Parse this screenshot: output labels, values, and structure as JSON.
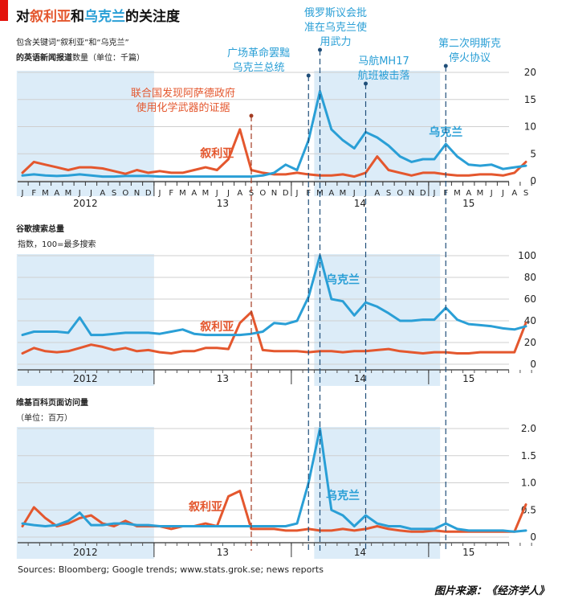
{
  "header": {
    "title_prefix": "对",
    "title_syria": "叙利亚",
    "title_middle": "和",
    "title_ukraine": "乌克兰",
    "title_suffix": "的关注度",
    "colors": {
      "syria": "#e4572e",
      "ukraine": "#2a9fd6",
      "brand": "#e3120b"
    }
  },
  "footer": {
    "sources": "Sources: Bloomberg; Google trends; www.stats.grok.se; news reports",
    "credit": "图片来源：《经济学人》"
  },
  "chart_data": [
    {
      "type": "line",
      "panel_title": "包含关键词“叙利亚”和“乌克兰”",
      "panel_subtitle_bold": "的英语新闻报道",
      "panel_subtitle_rest": "数量（单位：千篇）",
      "ylim": [
        0,
        20
      ],
      "yticks": [
        0,
        5,
        10,
        15,
        20
      ],
      "month_ticks": [
        "J",
        "F",
        "M",
        "A",
        "M",
        "J",
        "J",
        "A",
        "S",
        "O",
        "N",
        "D",
        "J",
        "F",
        "M",
        "A",
        "M",
        "J",
        "J",
        "A",
        "S",
        "O",
        "N",
        "D",
        "J",
        "F",
        "M",
        "A",
        "M",
        "J",
        "J",
        "A",
        "S",
        "O",
        "N",
        "D",
        "J",
        "F",
        "M",
        "A",
        "M",
        "J",
        "J",
        "A",
        "S"
      ],
      "year_labels": [
        "2012",
        "13",
        "14",
        "15"
      ],
      "series": [
        {
          "name": "叙利亚",
          "color": "#e4572e",
          "values": [
            1.5,
            3.5,
            3.0,
            2.5,
            2.0,
            2.5,
            2.5,
            2.3,
            1.8,
            1.3,
            2.0,
            1.5,
            1.8,
            1.5,
            1.5,
            2.0,
            2.5,
            2.0,
            4.0,
            9.5,
            2.0,
            1.5,
            1.2,
            1.2,
            1.5,
            1.2,
            1.0,
            1.0,
            1.2,
            0.8,
            1.5,
            4.5,
            2.0,
            1.5,
            1.0,
            1.5,
            1.5,
            1.2,
            1.0,
            1.0,
            1.2,
            1.2,
            1.0,
            1.5,
            3.5
          ]
        },
        {
          "name": "乌克兰",
          "color": "#2a9fd6",
          "values": [
            1.0,
            1.2,
            1.0,
            0.9,
            1.0,
            1.2,
            1.0,
            0.8,
            0.8,
            0.9,
            0.9,
            0.9,
            0.8,
            0.8,
            0.8,
            0.8,
            0.8,
            0.8,
            0.8,
            0.8,
            0.8,
            1.0,
            1.5,
            3.0,
            2.0,
            7.5,
            16.5,
            9.5,
            7.5,
            6.0,
            9.0,
            8.0,
            6.5,
            4.5,
            3.5,
            4.0,
            4.0,
            6.8,
            4.5,
            3.0,
            2.8,
            3.0,
            2.2,
            2.5,
            2.8
          ]
        }
      ],
      "annotations": [
        {
          "label": "叙利亚",
          "color": "#e4572e"
        },
        {
          "label": "乌克兰",
          "color": "#2a9fd6"
        }
      ]
    },
    {
      "type": "line",
      "panel_title": "谷歌搜索总量",
      "panel_subtitle": "指数，100=最多搜索",
      "ylim": [
        0,
        100
      ],
      "yticks": [
        0,
        20,
        40,
        60,
        80,
        100
      ],
      "year_labels": [
        "2012",
        "13",
        "14",
        "15"
      ],
      "series": [
        {
          "name": "叙利亚",
          "color": "#e4572e",
          "values": [
            10,
            15,
            12,
            11,
            12,
            15,
            18,
            16,
            13,
            15,
            12,
            13,
            11,
            10,
            12,
            12,
            15,
            15,
            14,
            38,
            48,
            13,
            12,
            12,
            12,
            11,
            12,
            12,
            11,
            12,
            12,
            13,
            14,
            12,
            11,
            10,
            11,
            11,
            10,
            10,
            11,
            11,
            11,
            11,
            38
          ]
        },
        {
          "name": "乌克兰",
          "color": "#2a9fd6",
          "values": [
            27,
            30,
            30,
            30,
            29,
            43,
            27,
            27,
            28,
            29,
            29,
            29,
            28,
            30,
            32,
            28,
            27,
            27,
            27,
            27,
            28,
            30,
            38,
            37,
            40,
            62,
            100,
            60,
            58,
            45,
            57,
            53,
            47,
            40,
            40,
            41,
            41,
            52,
            41,
            37,
            36,
            35,
            33,
            32,
            35
          ]
        }
      ],
      "annotations": [
        {
          "label": "叙利亚",
          "color": "#e4572e"
        },
        {
          "label": "乌克兰",
          "color": "#2a9fd6"
        }
      ]
    },
    {
      "type": "line",
      "panel_title": "维基百科页面访问量",
      "panel_subtitle": "（单位：百万）",
      "ylim": [
        0,
        2.0
      ],
      "yticks": [
        0,
        0.5,
        1.0,
        1.5,
        2.0
      ],
      "ytick_labels": [
        "0",
        "0.5",
        "1.0",
        "1.5",
        "2.0"
      ],
      "year_labels": [
        "2012",
        "13",
        "14",
        "15"
      ],
      "series": [
        {
          "name": "叙利亚",
          "color": "#e4572e",
          "values": [
            0.2,
            0.55,
            0.35,
            0.2,
            0.25,
            0.35,
            0.4,
            0.25,
            0.2,
            0.3,
            0.2,
            0.2,
            0.2,
            0.15,
            0.2,
            0.2,
            0.25,
            0.2,
            0.75,
            0.85,
            0.15,
            0.15,
            0.15,
            0.12,
            0.12,
            0.15,
            0.12,
            0.12,
            0.15,
            0.12,
            0.15,
            0.2,
            0.15,
            0.12,
            0.1,
            0.1,
            0.12,
            0.1,
            0.1,
            0.1,
            0.1,
            0.1,
            0.1,
            0.1,
            0.6
          ]
        },
        {
          "name": "乌克兰",
          "color": "#2a9fd6",
          "values": [
            0.25,
            0.22,
            0.2,
            0.22,
            0.3,
            0.45,
            0.22,
            0.22,
            0.25,
            0.25,
            0.22,
            0.22,
            0.2,
            0.2,
            0.2,
            0.2,
            0.2,
            0.2,
            0.2,
            0.2,
            0.2,
            0.2,
            0.2,
            0.2,
            0.25,
            1.0,
            2.0,
            0.5,
            0.4,
            0.2,
            0.4,
            0.25,
            0.2,
            0.2,
            0.15,
            0.15,
            0.15,
            0.25,
            0.15,
            0.12,
            0.12,
            0.12,
            0.12,
            0.1,
            0.12
          ]
        }
      ],
      "annotations": [
        {
          "label": "叙利亚",
          "color": "#e4572e"
        },
        {
          "label": "乌克兰",
          "color": "#2a9fd6"
        }
      ]
    }
  ],
  "events": [
    {
      "label_lines": [
        "联合国发现阿萨德政府",
        "使用化学武器的证据"
      ],
      "month_index": 20,
      "color": "#e4572e"
    },
    {
      "label_lines": [
        "广场革命罢黜",
        "乌克兰总统"
      ],
      "month_index": 25,
      "color": "#2a9fd6"
    },
    {
      "label_lines": [
        "俄罗斯议会批",
        "准在乌克兰使",
        "用武力"
      ],
      "month_index": 26,
      "color": "#2a9fd6"
    },
    {
      "label_lines": [
        "马航MH17",
        "航班被击落"
      ],
      "month_index": 30,
      "color": "#2a9fd6"
    },
    {
      "label_lines": [
        "第二次明斯克",
        "停火协议"
      ],
      "month_index": 37,
      "color": "#2a9fd6"
    }
  ],
  "shaded_month_ranges": [
    [
      0,
      11
    ],
    [
      26,
      36
    ]
  ]
}
